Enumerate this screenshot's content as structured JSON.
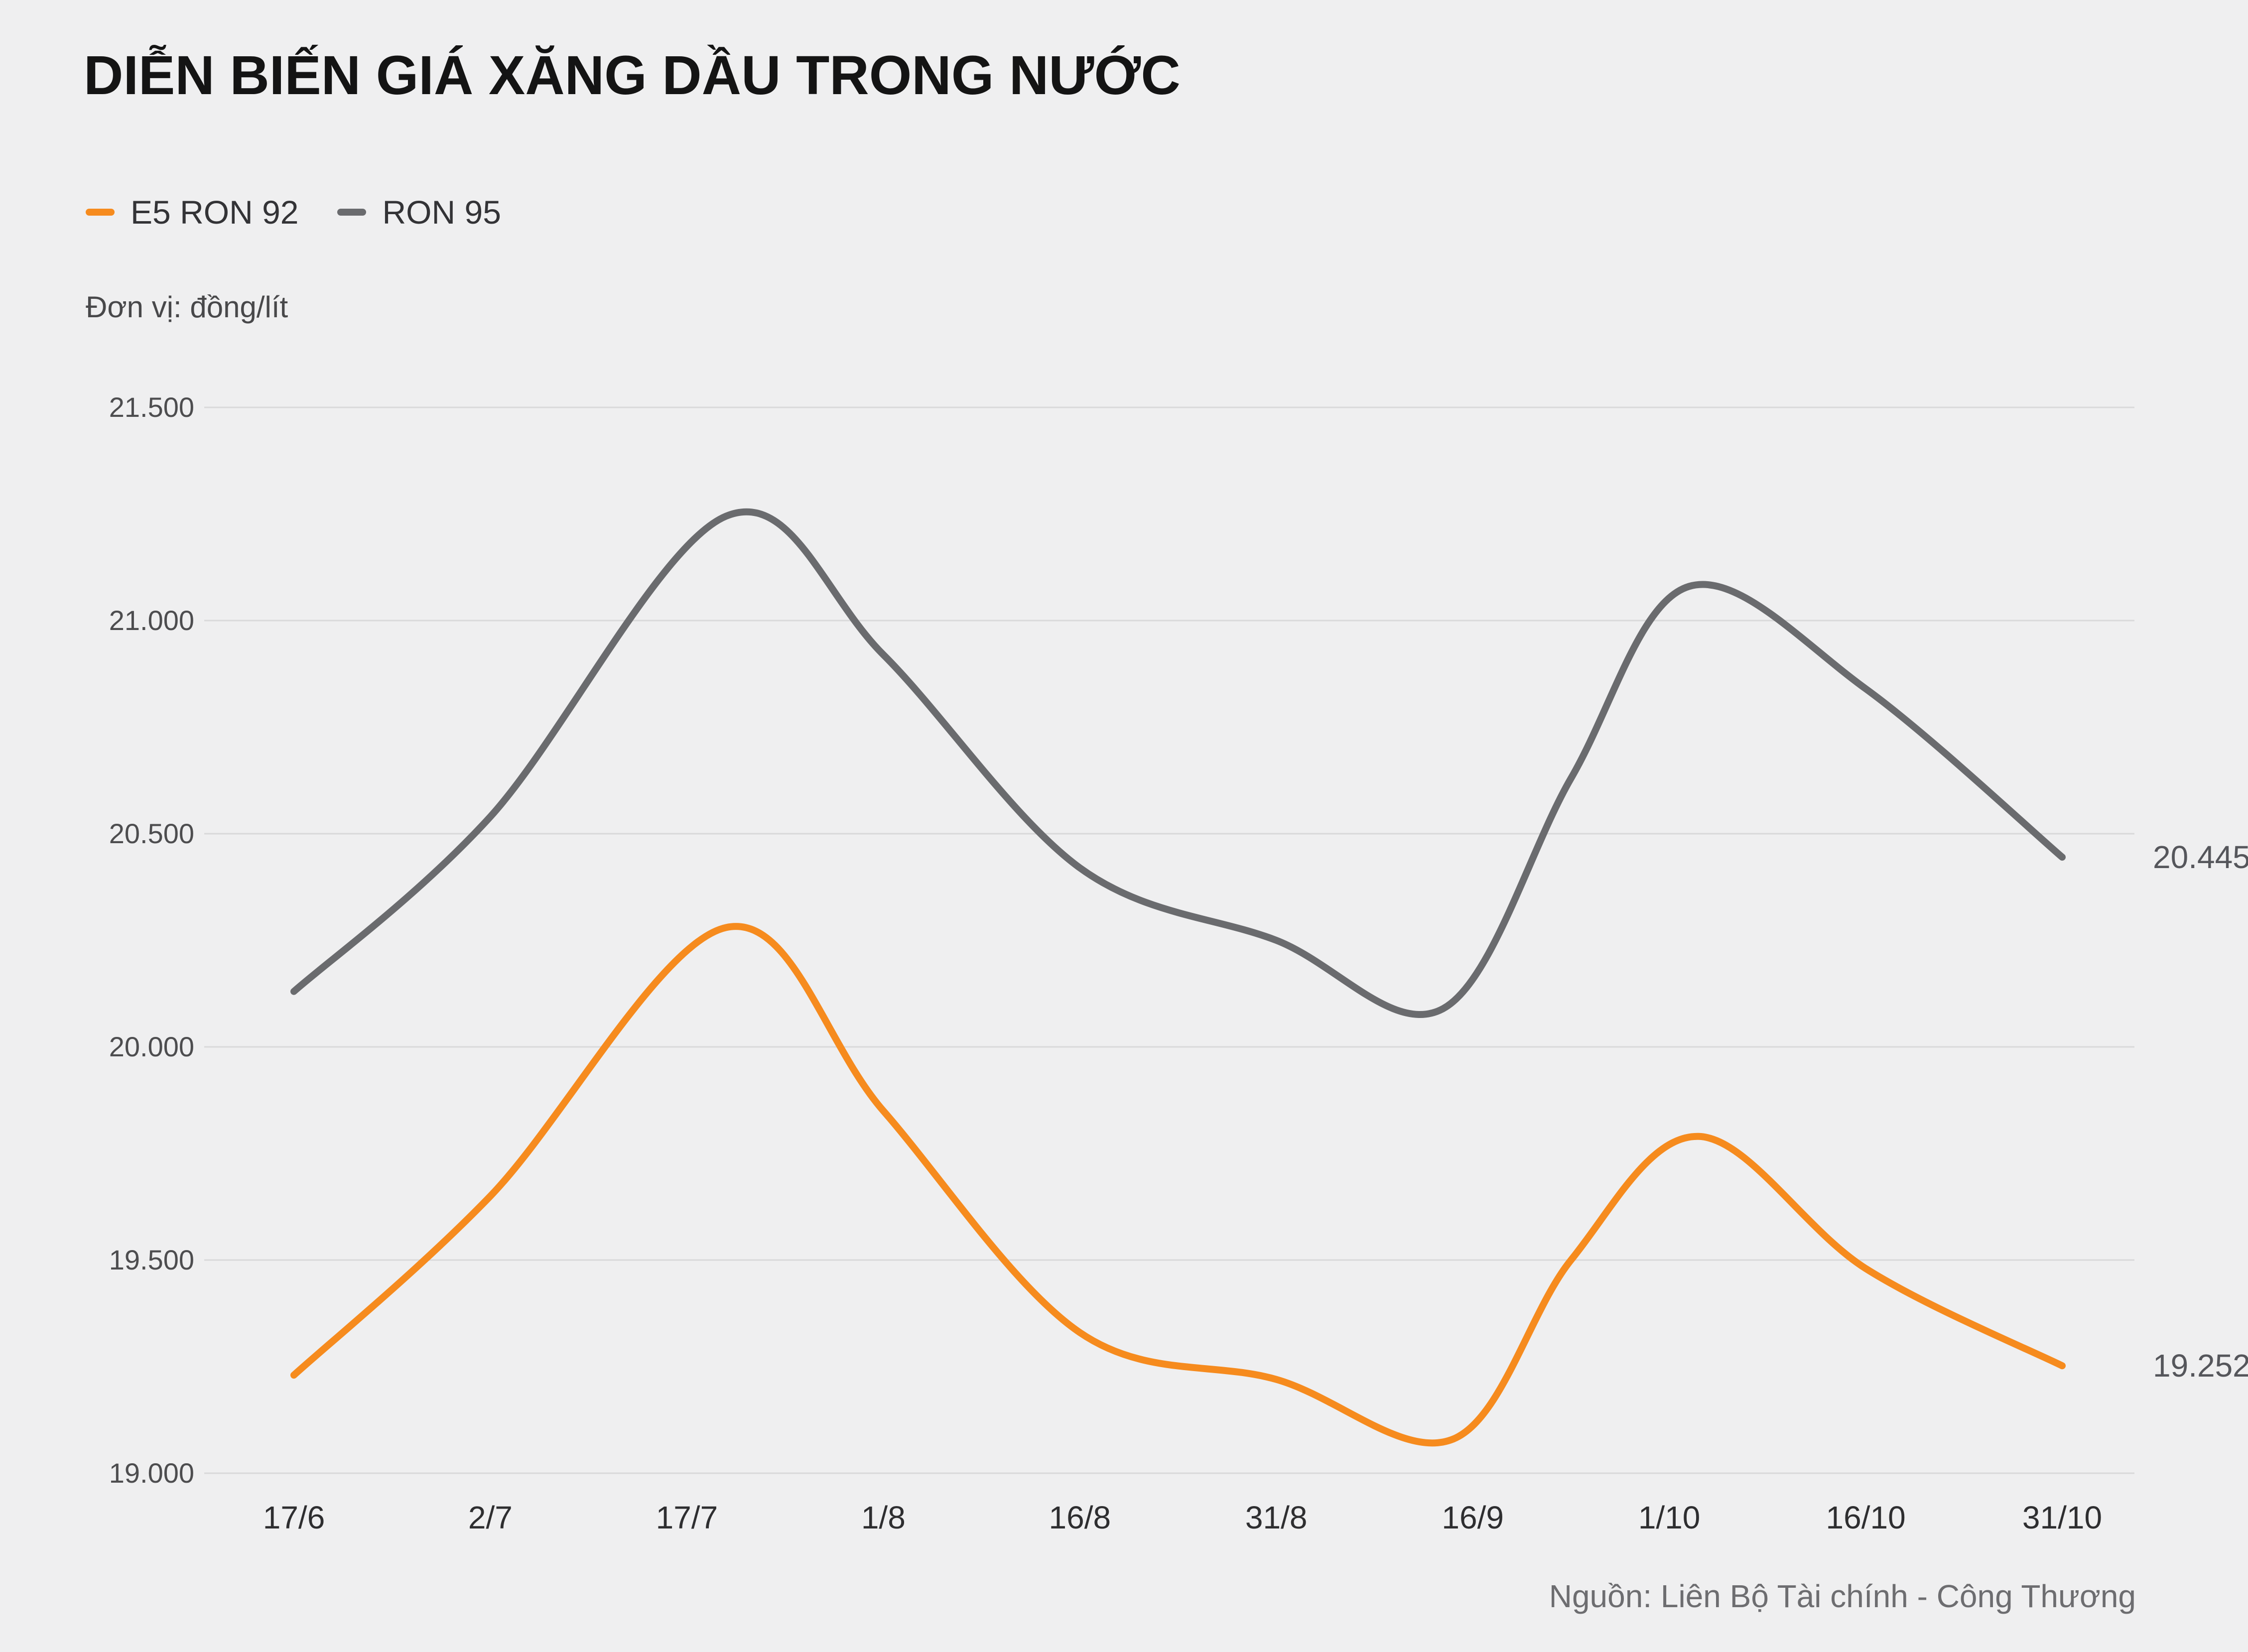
{
  "header": {
    "title": "DIỄN BIẾN GIÁ XĂNG DẦU TRONG NƯỚC",
    "unit": "Đơn vị: đồng/lít"
  },
  "footer": {
    "source": "Nguồn: Liên Bộ Tài chính - Công Thương"
  },
  "colors": {
    "background": "#EFEFF0",
    "gridline": "#D9D9DA",
    "e5_ron_92": "#F68B1E",
    "ron_95": "#6A6B6E"
  },
  "chart_data": {
    "type": "line",
    "title": "DIỄN BIẾN GIÁ XĂNG DẦU TRONG NƯỚC",
    "unit": "đồng/lít",
    "legend_position": "top-left",
    "grid": "horizontal",
    "categories": [
      "17/6",
      "2/7",
      "17/7",
      "1/8",
      "16/8",
      "31/8",
      "16/9",
      "1/10",
      "16/10",
      "31/10"
    ],
    "ylim": [
      19000,
      21500
    ],
    "yticks": [
      {
        "value": 21500,
        "label": "21.500"
      },
      {
        "value": 21000,
        "label": "21.000"
      },
      {
        "value": 20500,
        "label": "20.500"
      },
      {
        "value": 20000,
        "label": "20.000"
      },
      {
        "value": 19500,
        "label": "19.500"
      },
      {
        "value": 19000,
        "label": "19.000"
      }
    ],
    "series": [
      {
        "name": "E5 RON 92",
        "color": "#F68B1E",
        "end_label": "19.252",
        "values_at_categories": [
          19230,
          19650,
          20280,
          19850,
          19330,
          19220,
          19110,
          19780,
          19480,
          19252
        ],
        "points": [
          [
            0,
            19230
          ],
          [
            1,
            19650
          ],
          [
            2.2,
            20280
          ],
          [
            3,
            19850
          ],
          [
            4,
            19330
          ],
          [
            5,
            19220
          ],
          [
            5.9,
            19080
          ],
          [
            6.5,
            19500
          ],
          [
            7.15,
            19790
          ],
          [
            8,
            19480
          ],
          [
            9,
            19252
          ]
        ]
      },
      {
        "name": "RON 95",
        "color": "#6A6B6E",
        "end_label": "20.445",
        "values_at_categories": [
          20130,
          20540,
          21245,
          20920,
          20420,
          20250,
          20150,
          21080,
          20840,
          20445
        ],
        "points": [
          [
            0,
            20130
          ],
          [
            1,
            20540
          ],
          [
            2.2,
            21245
          ],
          [
            3,
            20920
          ],
          [
            4,
            20420
          ],
          [
            5,
            20250
          ],
          [
            5.85,
            20090
          ],
          [
            6.5,
            20630
          ],
          [
            7.1,
            21080
          ],
          [
            8,
            20840
          ],
          [
            9,
            20445
          ]
        ]
      }
    ]
  }
}
